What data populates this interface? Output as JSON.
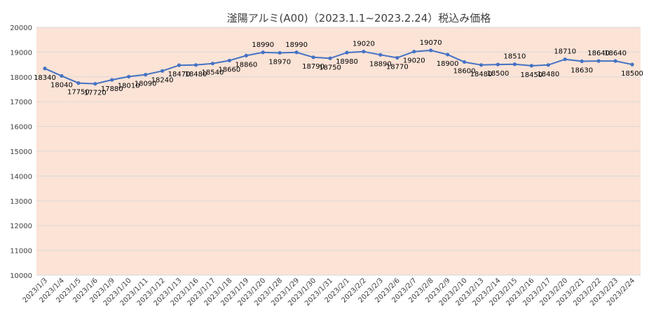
{
  "chart_data": {
    "type": "line",
    "title": "滏陽アルミ(A00)（2023.1.1~2023.2.24）税込み価格",
    "xlabel": "",
    "ylabel": "",
    "ylim": [
      10000,
      20000
    ],
    "yticks": [
      10000,
      11000,
      12000,
      13000,
      14000,
      15000,
      16000,
      17000,
      18000,
      19000,
      20000
    ],
    "grid": true,
    "legend": "none",
    "categories": [
      "2023/1/3",
      "2023/1/4",
      "2023/1/5",
      "2023/1/6",
      "2023/1/9",
      "2023/1/10",
      "2023/1/11",
      "2023/1/12",
      "2023/1/13",
      "2023/1/16",
      "2023/1/17",
      "2023/1/18",
      "2023/1/19",
      "2023/1/20",
      "2023/1/28",
      "2023/1/29",
      "2023/1/30",
      "2023/1/31",
      "2023/2/1",
      "2023/2/2",
      "2023/2/3",
      "2023/2/6",
      "2023/2/7",
      "2023/2/8",
      "2023/2/9",
      "2023/2/10",
      "2023/2/13",
      "2023/2/14",
      "2023/2/15",
      "2023/2/16",
      "2023/2/17",
      "2023/2/20",
      "2023/2/21",
      "2023/2/22",
      "2023/2/23",
      "2023/2/24"
    ],
    "series": [
      {
        "values": [
          18340,
          18040,
          17750,
          17720,
          17880,
          18010,
          18090,
          18240,
          18470,
          18480,
          18540,
          18660,
          18860,
          18990,
          18970,
          18990,
          18790,
          18750,
          18980,
          19020,
          18890,
          18770,
          19020,
          19070,
          18900,
          18600,
          18480,
          18500,
          18510,
          18450,
          18480,
          18710,
          18630,
          18640,
          18640,
          18500
        ]
      }
    ],
    "colors": {
      "line": "#4472C4",
      "plot_bg": "#FBE3D6",
      "grid": "#D9D9D9",
      "text": "#404040",
      "label": "#000000"
    }
  }
}
